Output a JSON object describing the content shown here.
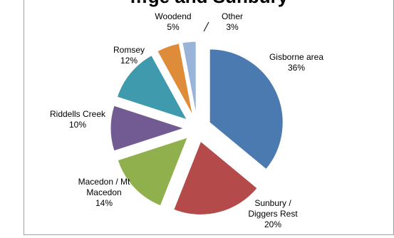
{
  "chart_data": {
    "type": "pie",
    "title": "…ge and Sunbury",
    "slices": [
      {
        "label": "Gisborne area",
        "value": 36,
        "pct": "36%",
        "color": "#4a7ab0"
      },
      {
        "label": "Sunbury / Diggers Rest",
        "value": 20,
        "pct": "20%",
        "color": "#b54a4a"
      },
      {
        "label": "Macedon / Mt Macedon",
        "value": 14,
        "pct": "14%",
        "color": "#8fb04c"
      },
      {
        "label": "Riddells Creek",
        "value": 10,
        "pct": "10%",
        "color": "#725b93"
      },
      {
        "label": "Romsey",
        "value": 12,
        "pct": "12%",
        "color": "#3f9aae"
      },
      {
        "label": "Woodend",
        "value": 5,
        "pct": "5%",
        "color": "#de8b3a"
      },
      {
        "label": "Other",
        "value": 3,
        "pct": "3%",
        "color": "#9ab4d9"
      }
    ],
    "exploded": true,
    "legend": "none"
  }
}
